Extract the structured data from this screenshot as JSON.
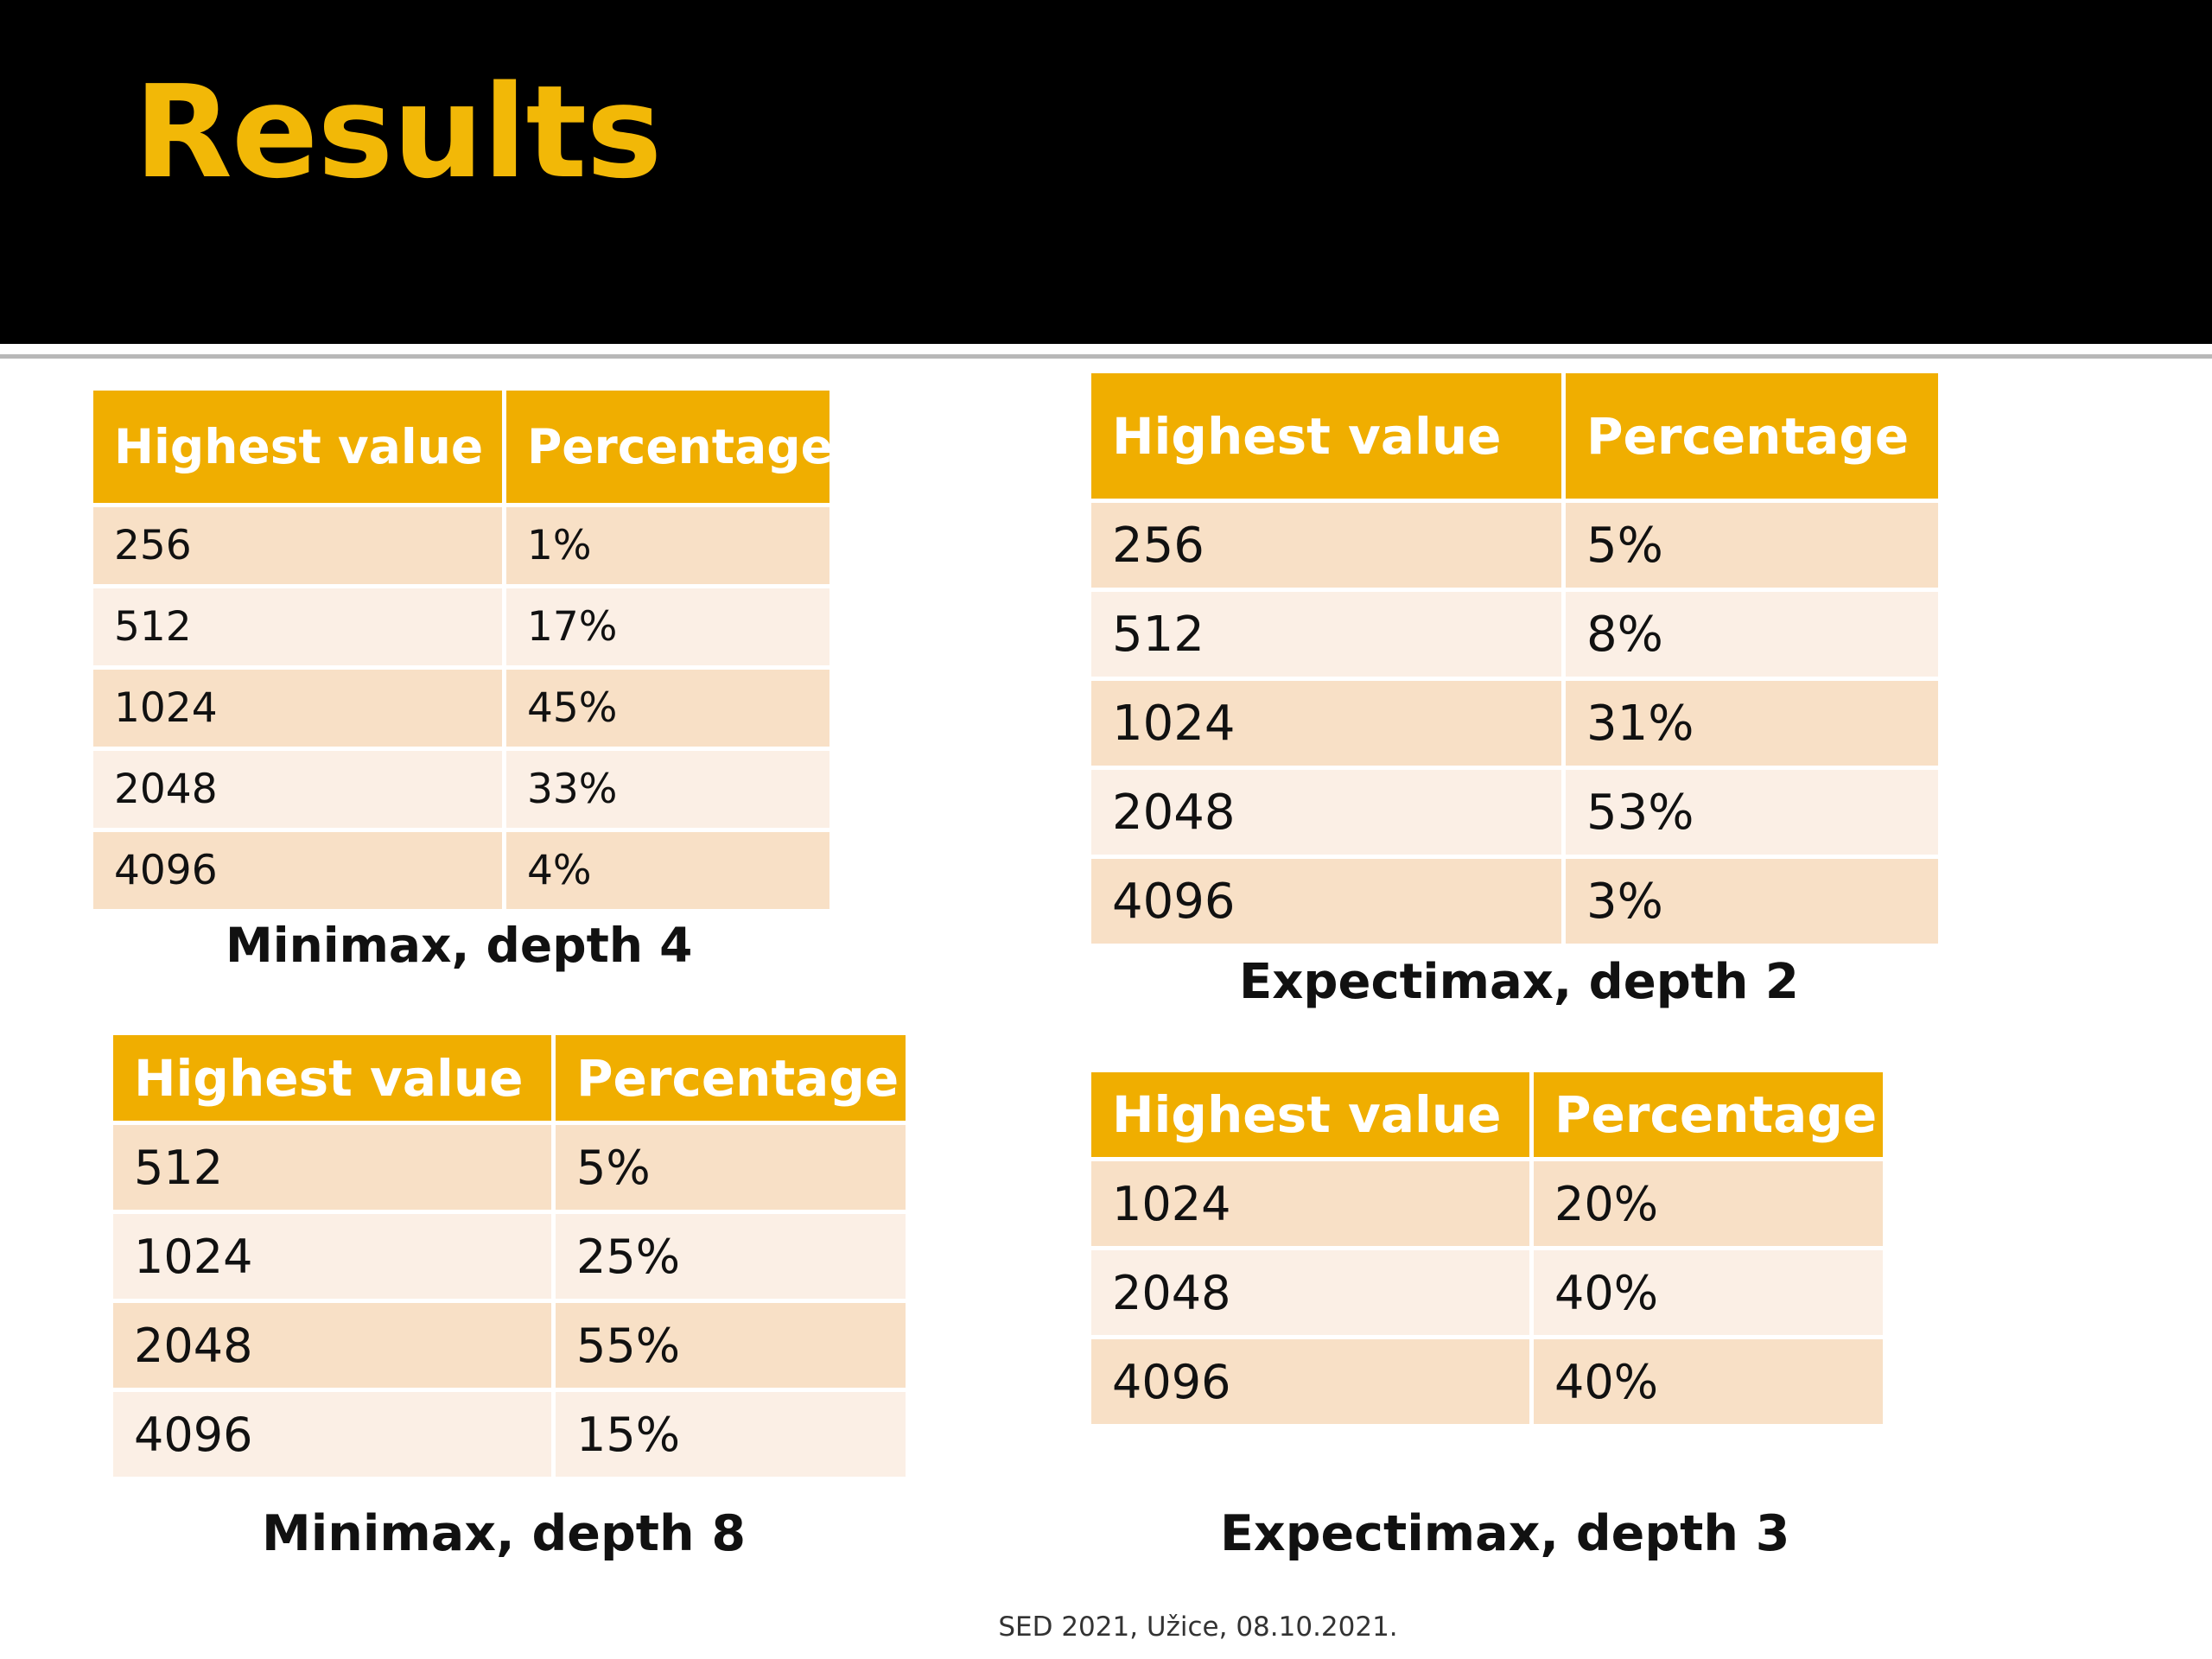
{
  "slide": {
    "title": "Results",
    "footer": "SED 2021, Užice, 08.10.2021."
  },
  "tables": {
    "minimax_d4": {
      "caption": "Minimax, depth 4",
      "headers": [
        "Highest value",
        "Percentage"
      ],
      "rows": [
        [
          "256",
          "1%"
        ],
        [
          "512",
          "17%"
        ],
        [
          "1024",
          "45%"
        ],
        [
          "2048",
          "33%"
        ],
        [
          "4096",
          "4%"
        ]
      ]
    },
    "expectimax_d2": {
      "caption": "Expectimax, depth 2",
      "headers": [
        "Highest value",
        "Percentage"
      ],
      "rows": [
        [
          "256",
          "5%"
        ],
        [
          "512",
          "8%"
        ],
        [
          "1024",
          "31%"
        ],
        [
          "2048",
          "53%"
        ],
        [
          "4096",
          "3%"
        ]
      ]
    },
    "minimax_d8": {
      "caption": "Minimax, depth 8",
      "headers": [
        "Highest value",
        "Percentage"
      ],
      "rows": [
        [
          "512",
          "5%"
        ],
        [
          "1024",
          "25%"
        ],
        [
          "2048",
          "55%"
        ],
        [
          "4096",
          "15%"
        ]
      ]
    },
    "expectimax_d3": {
      "caption": "Expectimax, depth 3",
      "headers": [
        "Highest value",
        "Percentage"
      ],
      "rows": [
        [
          "1024",
          "20%"
        ],
        [
          "2048",
          "40%"
        ],
        [
          "4096",
          "40%"
        ]
      ]
    }
  },
  "colors": {
    "title": "#f2b807",
    "header_bar": "#000000",
    "table_header": "#f0ae00",
    "row_odd": "#f8e0c6",
    "row_even": "#fbefe5"
  }
}
